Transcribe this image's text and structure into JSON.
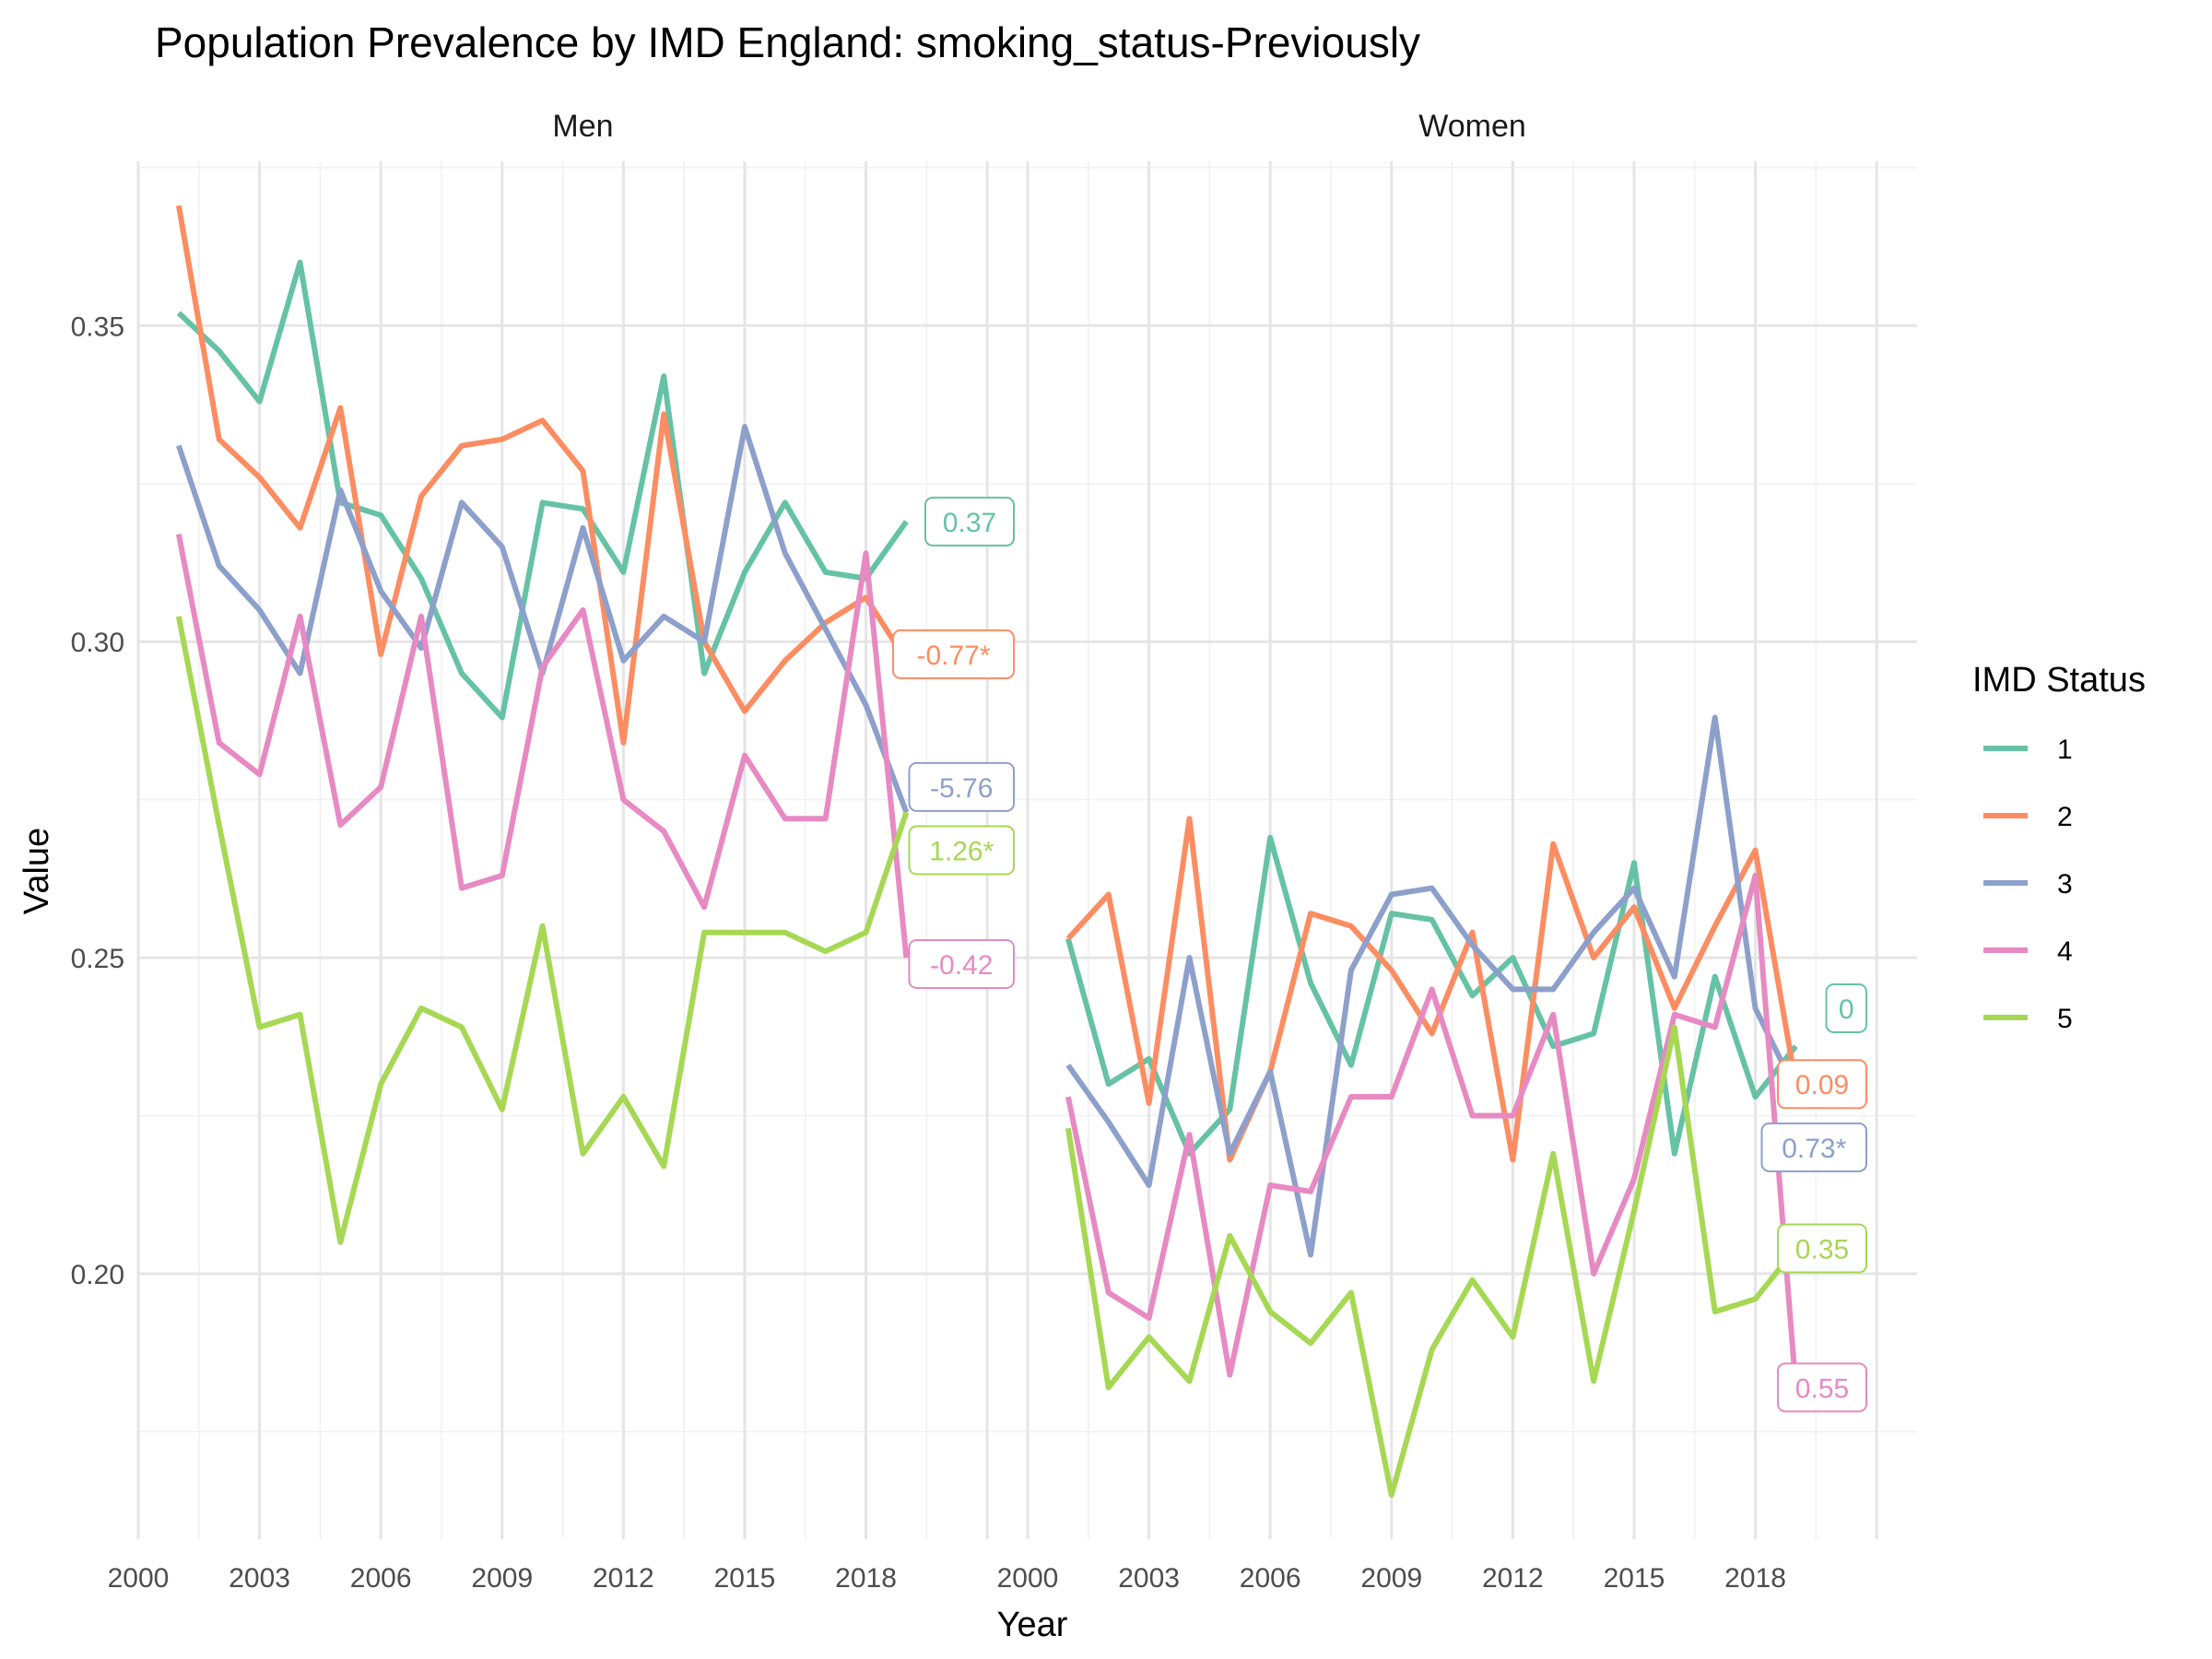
{
  "chart_data": {
    "type": "line",
    "title": "Population Prevalence by IMD England: smoking_status-Previously",
    "xlabel": "Year",
    "ylabel": "Value",
    "x_ticks": [
      "2000",
      "2003",
      "2006",
      "2009",
      "2012",
      "2015",
      "2018"
    ],
    "y_ticks": [
      "0.20",
      "0.25",
      "0.30",
      "0.35"
    ],
    "xlim": [
      2000,
      2022
    ],
    "ylim": [
      0.158,
      0.376
    ],
    "grid": true,
    "legend": {
      "title": "IMD Status",
      "position": "right",
      "entries": [
        "1",
        "2",
        "3",
        "4",
        "5"
      ]
    },
    "colors": {
      "1": "#66c2a5",
      "2": "#fc8d62",
      "3": "#8da0cb",
      "4": "#e78ac3",
      "5": "#a6d854"
    },
    "years": [
      2001,
      2002,
      2003,
      2004,
      2005,
      2006,
      2007,
      2008,
      2009,
      2010,
      2011,
      2012,
      2013,
      2014,
      2015,
      2016,
      2017,
      2018,
      2019
    ],
    "panels": [
      {
        "name": "Men",
        "series": [
          {
            "name": "1",
            "values": [
              0.352,
              0.346,
              0.338,
              0.36,
              0.322,
              0.32,
              0.31,
              0.295,
              0.288,
              0.322,
              0.321,
              0.311,
              0.342,
              0.295,
              0.311,
              0.322,
              0.311,
              0.31,
              0.319
            ]
          },
          {
            "name": "2",
            "values": [
              0.369,
              0.332,
              0.326,
              0.318,
              0.337,
              0.298,
              0.323,
              0.331,
              0.332,
              0.335,
              0.327,
              0.284,
              0.336,
              0.3,
              0.289,
              0.297,
              0.303,
              0.307,
              0.297
            ]
          },
          {
            "name": "3",
            "values": [
              0.331,
              0.312,
              0.305,
              0.295,
              0.324,
              0.308,
              0.299,
              0.322,
              0.315,
              0.295,
              0.318,
              0.297,
              0.304,
              0.3,
              0.334,
              0.314,
              0.302,
              0.29,
              0.273
            ]
          },
          {
            "name": "4",
            "values": [
              0.317,
              0.284,
              0.279,
              0.304,
              0.271,
              0.277,
              0.304,
              0.261,
              0.263,
              0.296,
              0.305,
              0.275,
              0.27,
              0.258,
              0.282,
              0.272,
              0.272,
              0.314,
              0.25
            ]
          },
          {
            "name": "5",
            "values": [
              0.304,
              0.271,
              0.239,
              0.241,
              0.205,
              0.23,
              0.242,
              0.239,
              0.226,
              0.255,
              0.219,
              0.228,
              0.217,
              0.254,
              0.254,
              0.254,
              0.251,
              0.254,
              0.273
            ]
          }
        ],
        "labels": [
          {
            "series": "1",
            "text": "0.37",
            "y": 0.319
          },
          {
            "series": "2",
            "text": "-0.77*",
            "y": 0.298
          },
          {
            "series": "3",
            "text": "-5.76",
            "y": 0.277
          },
          {
            "series": "5",
            "text": "1.26*",
            "y": 0.267
          },
          {
            "series": "4",
            "text": "-0.42",
            "y": 0.249
          }
        ]
      },
      {
        "name": "Women",
        "series": [
          {
            "name": "1",
            "values": [
              0.253,
              0.23,
              0.234,
              0.219,
              0.226,
              0.269,
              0.246,
              0.233,
              0.257,
              0.256,
              0.244,
              0.25,
              0.236,
              0.238,
              0.265,
              0.219,
              0.247,
              0.228,
              0.236
            ]
          },
          {
            "name": "2",
            "values": [
              0.253,
              0.26,
              0.227,
              0.272,
              0.218,
              0.232,
              0.257,
              0.255,
              0.248,
              0.238,
              0.254,
              0.218,
              0.268,
              0.25,
              0.258,
              0.242,
              0.255,
              0.267,
              0.23
            ]
          },
          {
            "name": "3",
            "values": [
              0.233,
              0.224,
              0.214,
              0.25,
              0.219,
              0.232,
              0.203,
              0.248,
              0.26,
              0.261,
              0.252,
              0.245,
              0.245,
              0.254,
              0.261,
              0.247,
              0.288,
              0.242,
              0.229
            ]
          },
          {
            "name": "4",
            "values": [
              0.228,
              0.197,
              0.193,
              0.222,
              0.184,
              0.214,
              0.213,
              0.228,
              0.228,
              0.245,
              0.225,
              0.225,
              0.241,
              0.2,
              0.215,
              0.241,
              0.239,
              0.263,
              0.182
            ]
          },
          {
            "name": "5",
            "values": [
              0.223,
              0.182,
              0.19,
              0.183,
              0.206,
              0.194,
              0.189,
              0.197,
              0.165,
              0.188,
              0.199,
              0.19,
              0.219,
              0.183,
              0.21,
              0.239,
              0.194,
              0.196,
              0.204
            ]
          }
        ],
        "labels": [
          {
            "series": "1",
            "text": "0",
            "y": 0.242
          },
          {
            "series": "2",
            "text": "0.09",
            "y": 0.23
          },
          {
            "series": "3",
            "text": "0.73*",
            "y": 0.22
          },
          {
            "series": "5",
            "text": "0.35",
            "y": 0.204
          },
          {
            "series": "4",
            "text": "0.55",
            "y": 0.182
          }
        ]
      }
    ]
  }
}
